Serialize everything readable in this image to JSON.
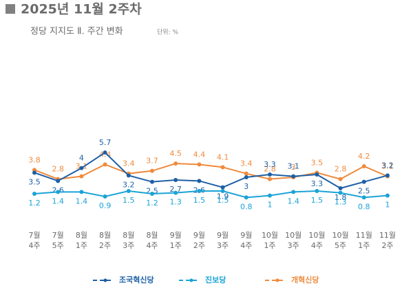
{
  "chart_data": {
    "type": "line",
    "title": "2025년 11월 2주차",
    "subtitle": "정당 지지도 Ⅱ. 주간 변화",
    "unit_note": "단위: %",
    "categories": [
      [
        "7월",
        "4주"
      ],
      [
        "7월",
        "5주"
      ],
      [
        "8월",
        "1주"
      ],
      [
        "8월",
        "2주"
      ],
      [
        "8월",
        "3주"
      ],
      [
        "8월",
        "4주"
      ],
      [
        "9월",
        "1주"
      ],
      [
        "9월",
        "2주"
      ],
      [
        "9월",
        "3주"
      ],
      [
        "9월",
        "4주"
      ],
      [
        "10월",
        "1주"
      ],
      [
        "10월",
        "3주"
      ],
      [
        "10월",
        "4주"
      ],
      [
        "10월",
        "5주"
      ],
      [
        "11월",
        "1주"
      ],
      [
        "11월",
        "2주"
      ]
    ],
    "series": [
      {
        "name": "개혁신당",
        "color": "#ef8a3c",
        "values": [
          3.8,
          2.8,
          3.1,
          4.4,
          3.4,
          3.7,
          4.5,
          4.4,
          4.1,
          3.4,
          2.8,
          3.0,
          3.5,
          2.8,
          4.2,
          3.1
        ]
      },
      {
        "name": "조국혁신당",
        "color": "#1d5fa6",
        "values": [
          3.5,
          2.6,
          4.0,
          5.7,
          3.2,
          2.5,
          2.7,
          2.6,
          1.9,
          3.0,
          3.3,
          3.1,
          3.3,
          1.8,
          2.5,
          3.2
        ]
      },
      {
        "name": "진보당",
        "color": "#1aa3d6",
        "values": [
          1.2,
          1.4,
          1.4,
          0.9,
          1.5,
          1.2,
          1.3,
          1.5,
          1.5,
          0.8,
          1.0,
          1.4,
          1.5,
          1.3,
          0.8,
          1.0
        ]
      }
    ],
    "legend_order": [
      1,
      2,
      0
    ]
  }
}
